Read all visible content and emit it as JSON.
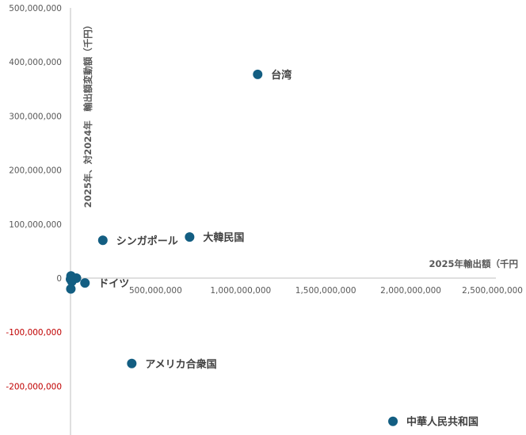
{
  "chart_data": {
    "type": "scatter",
    "xlabel": "2025年輸出額（千円",
    "ylabel": "2025年、対2024年　輸出額変動額（千円）",
    "xlim": [
      0,
      2500000000
    ],
    "ylim": [
      -290000000,
      500000000
    ],
    "x_ticks": [
      "500,000,000",
      "1,000,000,000",
      "1,500,000,000",
      "2,000,000,000",
      "2,500,000,000"
    ],
    "y_ticks": [
      "500,000,000",
      "400,000,000",
      "300,000,000",
      "200,000,000",
      "100,000,000",
      "0",
      "-100,000,000",
      "-200,000,000"
    ],
    "negative_tick_color": "#c00000",
    "marker_color": "#135e82",
    "grid": false,
    "points": [
      {
        "label": "台湾",
        "x": 1100000000,
        "y": 377000000
      },
      {
        "label": "シンガポール",
        "x": 190000000,
        "y": 70000000
      },
      {
        "label": "大韓民国",
        "x": 700000000,
        "y": 76000000
      },
      {
        "label": "ドイツ",
        "x": 85000000,
        "y": -9000000
      },
      {
        "label": "アメリカ合衆国",
        "x": 360000000,
        "y": -158000000
      },
      {
        "label": "中華人民共和国",
        "x": 1895000000,
        "y": -265000000
      },
      {
        "label": "",
        "x": 3000000,
        "y": 4000000
      },
      {
        "label": "",
        "x": 8000000,
        "y": -6000000
      },
      {
        "label": "",
        "x": 2000000,
        "y": -20000000
      },
      {
        "label": "",
        "x": 35000000,
        "y": 0
      },
      {
        "label": "",
        "x": 0,
        "y": -2000000
      }
    ]
  }
}
